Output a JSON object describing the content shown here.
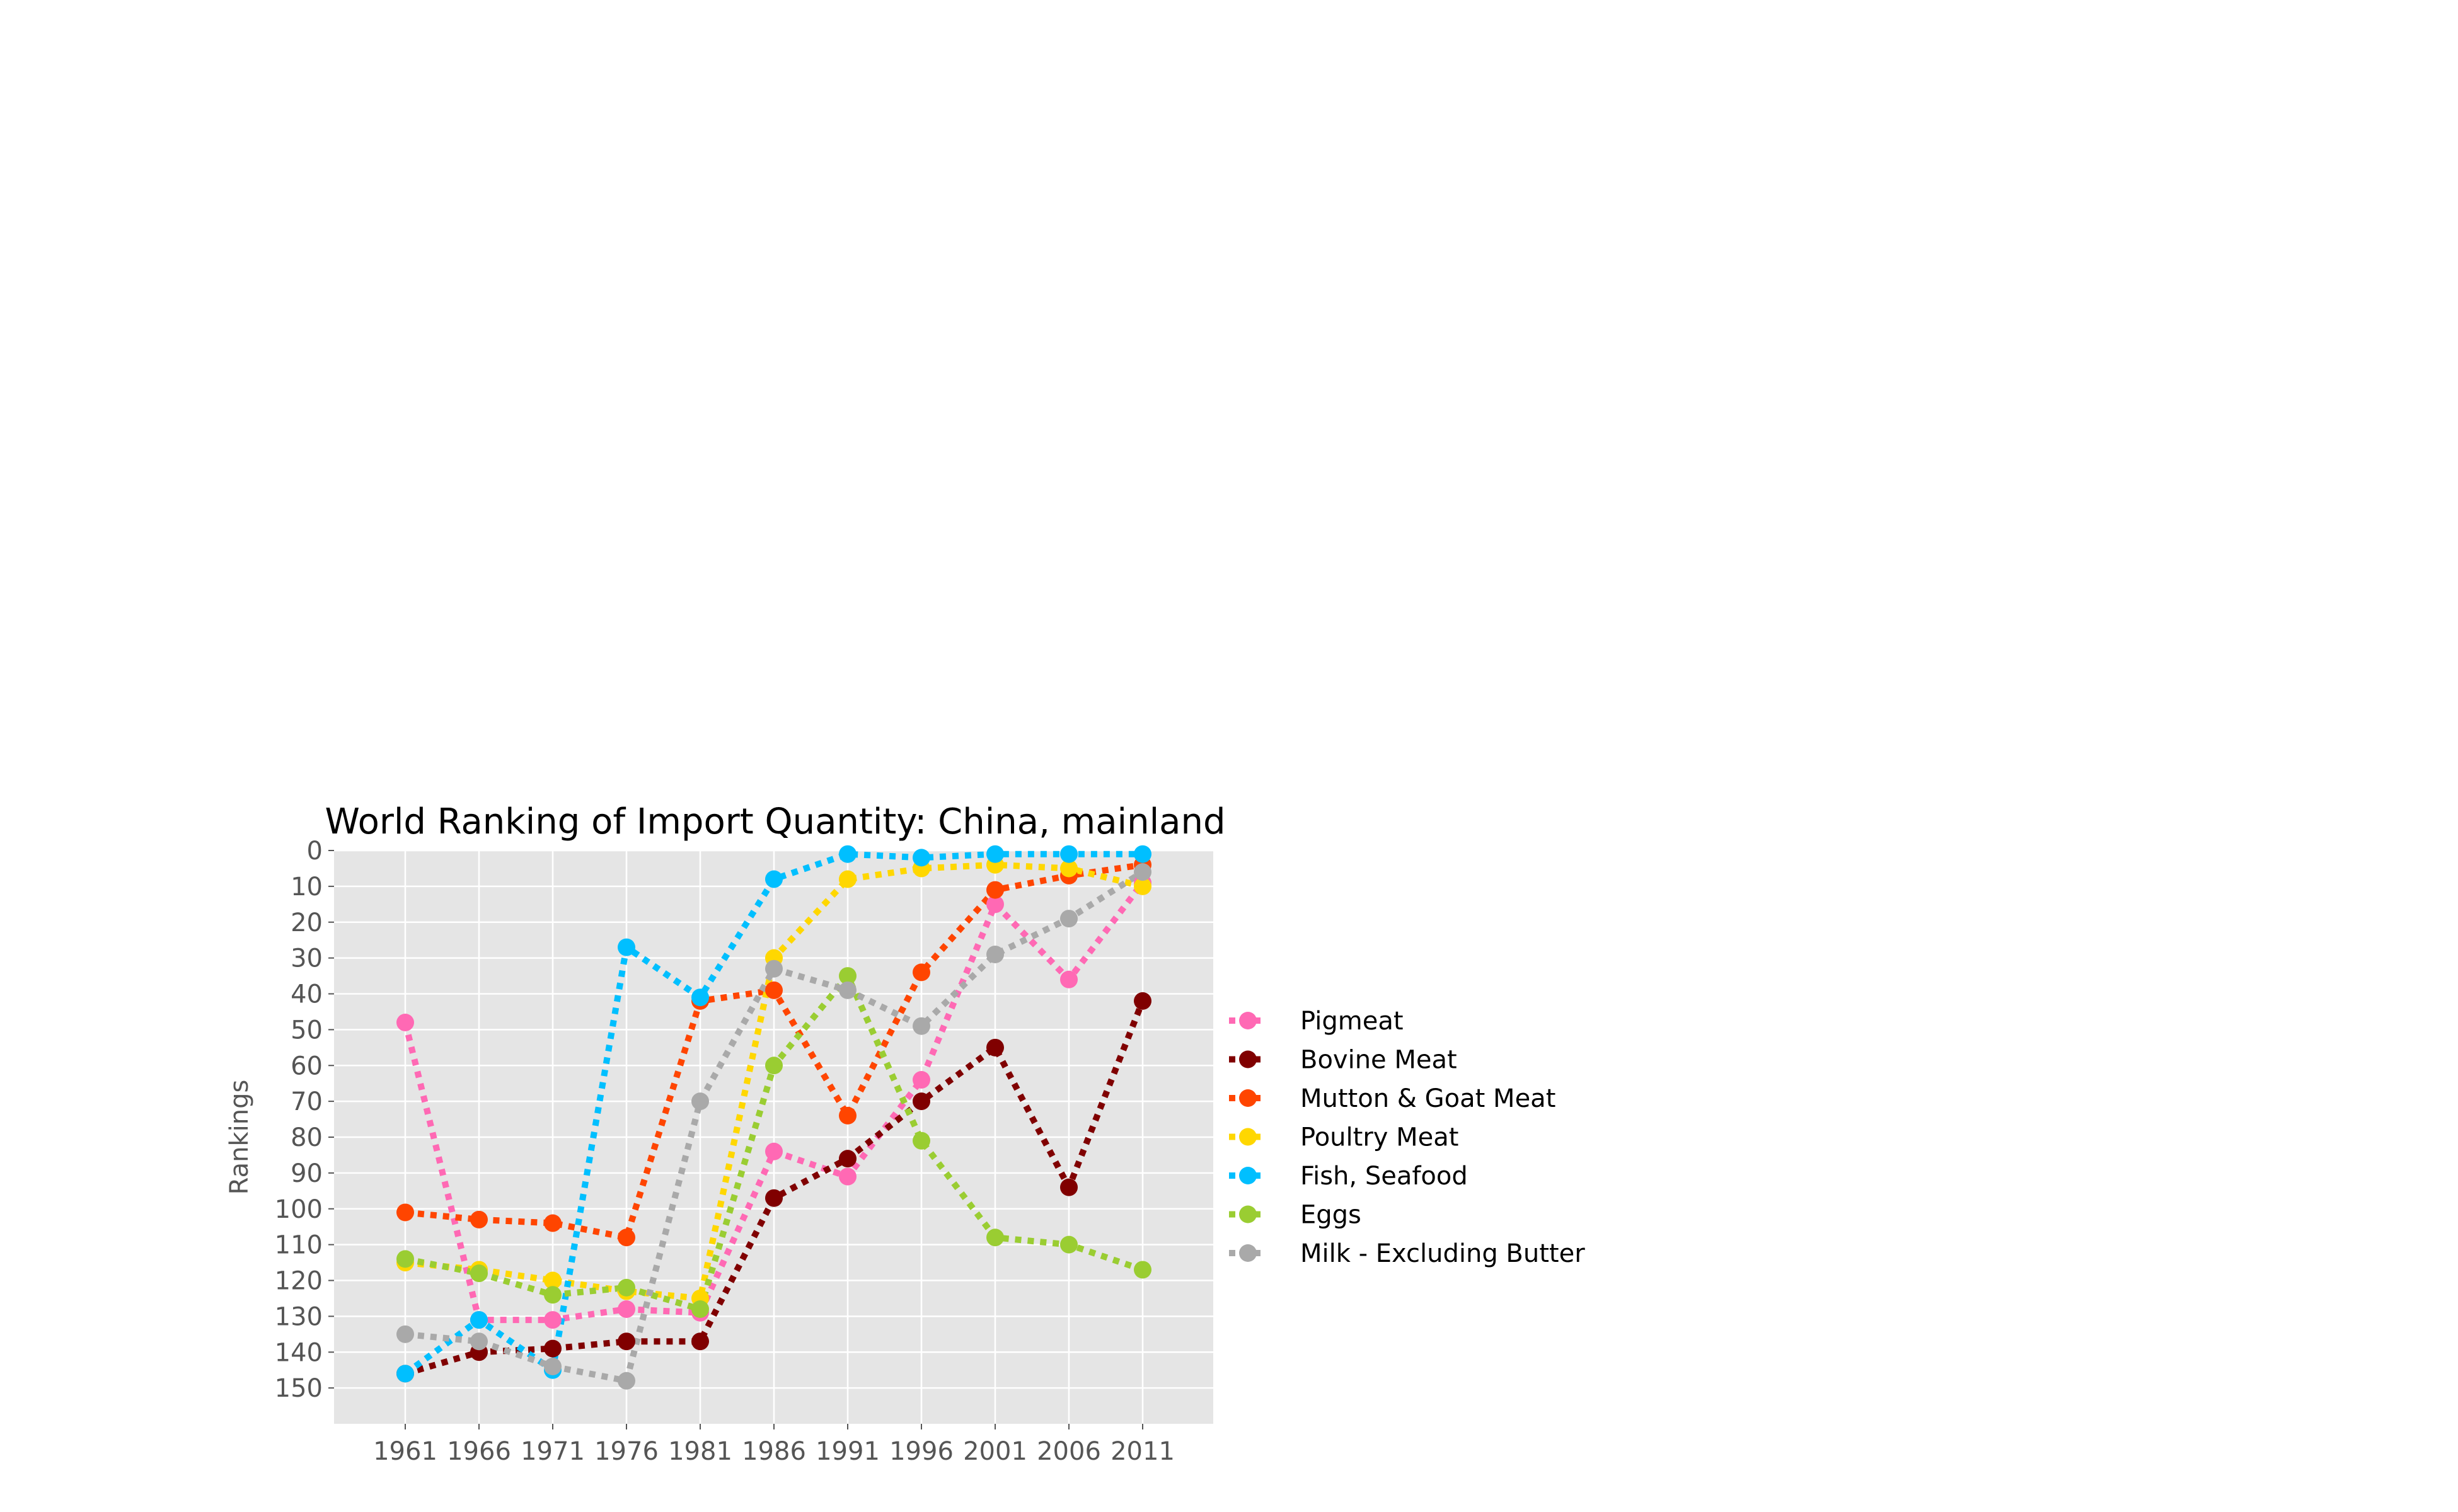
{
  "chart_data": {
    "type": "line",
    "title": "World Ranking of Import Quantity: China, mainland",
    "xlabel": "",
    "ylabel": "Rankings",
    "x": [
      "1961",
      "1966",
      "1971",
      "1976",
      "1981",
      "1986",
      "1991",
      "1996",
      "2001",
      "2006",
      "2011"
    ],
    "y_ticks": [
      "0",
      "10",
      "20",
      "30",
      "40",
      "50",
      "60",
      "70",
      "80",
      "90",
      "100",
      "110",
      "120",
      "130",
      "140",
      "150"
    ],
    "ylim": [
      160,
      0
    ],
    "y_inverted": true,
    "grid": true,
    "legend_position": "center-right",
    "line_style": "dotted",
    "series": [
      {
        "name": "Pigmeat",
        "color": "#ff69b4",
        "values": [
          48,
          131,
          131,
          128,
          129,
          84,
          91,
          64,
          15,
          36,
          9
        ]
      },
      {
        "name": "Bovine Meat",
        "color": "#800000",
        "values": [
          146,
          140,
          139,
          137,
          137,
          97,
          86,
          70,
          55,
          94,
          42
        ]
      },
      {
        "name": "Mutton & Goat Meat",
        "color": "#ff4500",
        "values": [
          101,
          103,
          104,
          108,
          42,
          39,
          74,
          34,
          11,
          7,
          4
        ]
      },
      {
        "name": "Poultry Meat",
        "color": "#ffd700",
        "values": [
          115,
          117,
          120,
          123,
          125,
          30,
          8,
          5,
          4,
          5,
          10
        ]
      },
      {
        "name": "Fish, Seafood",
        "color": "#00bfff",
        "values": [
          146,
          131,
          145,
          27,
          41,
          8,
          1,
          2,
          1,
          1,
          1
        ]
      },
      {
        "name": "Eggs",
        "color": "#9acd32",
        "values": [
          114,
          118,
          124,
          122,
          128,
          60,
          35,
          81,
          108,
          110,
          117
        ]
      },
      {
        "name": "Milk - Excluding Butter",
        "color": "#a9a9a9",
        "values": [
          135,
          137,
          144,
          148,
          70,
          33,
          39,
          49,
          29,
          19,
          6
        ]
      }
    ]
  }
}
